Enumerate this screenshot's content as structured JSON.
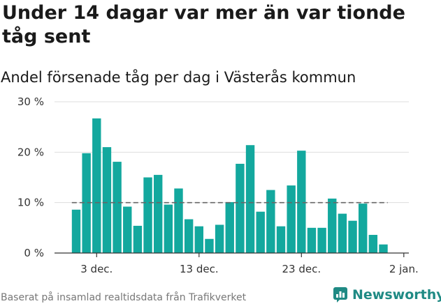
{
  "header": {
    "title": "Under 14 dagar var mer än var tionde tåg sent",
    "subtitle": "Andel försenade tåg per dag i Västerås kommun"
  },
  "footer": {
    "source": "Baserat på insamlad realtidsdata från Trafikverket",
    "brand": "Newsworthy"
  },
  "colors": {
    "bar": "#13a89e",
    "reference_line": "#666666",
    "grid": "#dddddd",
    "brand": "#1f8a84"
  },
  "chart_data": {
    "type": "bar",
    "title": "Under 14 dagar var mer än var tionde tåg sent",
    "subtitle": "Andel försenade tåg per dag i Västerås kommun",
    "x": [
      "2019-12-01",
      "2019-12-02",
      "2019-12-03",
      "2019-12-04",
      "2019-12-05",
      "2019-12-06",
      "2019-12-07",
      "2019-12-08",
      "2019-12-09",
      "2019-12-10",
      "2019-12-11",
      "2019-12-12",
      "2019-12-13",
      "2019-12-14",
      "2019-12-15",
      "2019-12-16",
      "2019-12-17",
      "2019-12-18",
      "2019-12-19",
      "2019-12-20",
      "2019-12-21",
      "2019-12-22",
      "2019-12-23",
      "2019-12-24",
      "2019-12-25",
      "2019-12-26",
      "2019-12-27",
      "2019-12-28",
      "2019-12-29",
      "2019-12-30",
      "2019-12-31"
    ],
    "values": [
      8.6,
      19.8,
      26.7,
      21.0,
      18.1,
      9.2,
      5.4,
      15.0,
      15.5,
      9.6,
      12.8,
      6.7,
      5.3,
      2.8,
      5.6,
      10.1,
      17.7,
      21.4,
      8.2,
      12.5,
      5.3,
      13.4,
      20.3,
      5.0,
      5.0,
      10.8,
      7.8,
      6.4,
      9.8,
      3.6,
      1.7
    ],
    "reference_line": {
      "value": 10,
      "style": "dashed"
    },
    "ylim": [
      0,
      30
    ],
    "yticks": [
      {
        "value": 0,
        "label": "0 %"
      },
      {
        "value": 10,
        "label": "10 %"
      },
      {
        "value": 20,
        "label": "20 %"
      },
      {
        "value": 30,
        "label": "30 %"
      }
    ],
    "xticks": [
      {
        "date": "2019-12-03",
        "label": "3 dec."
      },
      {
        "date": "2019-12-13",
        "label": "13 dec."
      },
      {
        "date": "2019-12-23",
        "label": "23 dec."
      },
      {
        "date": "2020-01-02",
        "label": "2 jan."
      }
    ],
    "grid": true,
    "legend": false
  }
}
